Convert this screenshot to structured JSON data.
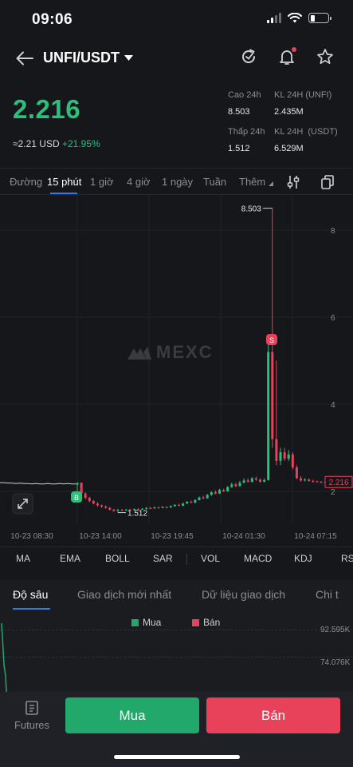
{
  "status": {
    "time": "09:06"
  },
  "header": {
    "pair": "UNFI/USDT"
  },
  "price": {
    "last": "2.216",
    "usd_approx": "≈2.21",
    "usd_unit": "USD",
    "change": "+21.95%",
    "high_label": "Cao 24h",
    "high_value": "8.503",
    "low_label": "Thấp 24h",
    "low_value": "1.512",
    "vol_unfi_label": "KL 24H (UNFI)",
    "vol_unfi_value": "2.435M",
    "vol_usdt_label": "KL 24H  (USDT)",
    "vol_usdt_value": "6.529M"
  },
  "timeframes": [
    "Đường",
    "15 phút",
    "1 giờ",
    "4 giờ",
    "1 ngày",
    "Tuần",
    "Thêm"
  ],
  "timeframe_selected": "15 phút",
  "chart": {
    "watermark": "MEXC",
    "y_ticks": [
      "8",
      "6",
      "4",
      "2"
    ],
    "x_ticks": [
      "10-23 08:30",
      "10-23 14:00",
      "10-23 19:45",
      "10-24 01:30",
      "10-24 07:15"
    ],
    "high_marker": "8.503",
    "low_marker": "1.512",
    "last_tag": "2.216",
    "buy_marker": "B",
    "sell_marker": "S",
    "colors": {
      "up": "#2bbf7b",
      "down": "#e8425a",
      "accent": "#2f7dea"
    }
  },
  "indicators": [
    "MA",
    "EMA",
    "BOLL",
    "SAR",
    "VOL",
    "MACD",
    "KDJ",
    "RS"
  ],
  "depth_tabs": [
    "Độ sâu",
    "Giao dịch mới nhất",
    "Dữ liệu giao dịch",
    "Chi t"
  ],
  "depth": {
    "legend_buy": "Mua",
    "legend_sell": "Bán",
    "y_labels": [
      "92.595K",
      "74.076K"
    ]
  },
  "bottom": {
    "futures": "Futures",
    "buy": "Mua",
    "sell": "Bán"
  }
}
